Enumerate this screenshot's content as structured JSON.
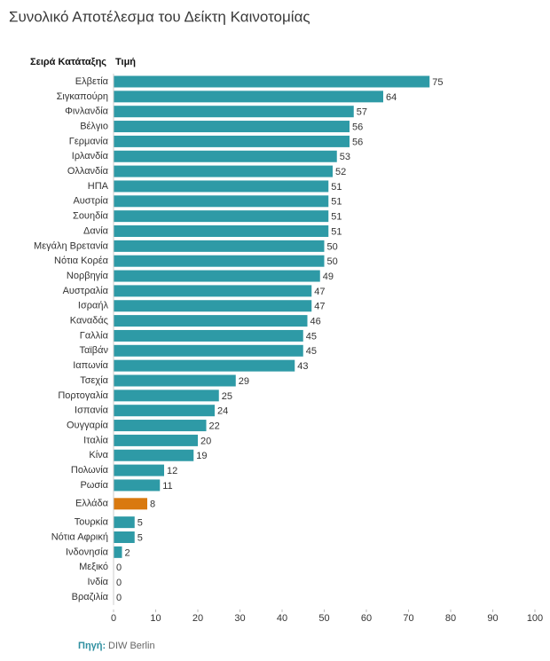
{
  "chart_data": {
    "type": "hbar",
    "title": "Συνολικό Αποτέλεσμα του Δείκτη Καινοτομίας",
    "category_header": "Σειρά Κατάταξης",
    "value_header": "Τιμή",
    "categories": [
      "Ελβετία",
      "Σιγκαπούρη",
      "Φινλανδία",
      "Βέλγιο",
      "Γερμανία",
      "Ιρλανδία",
      "Ολλανδία",
      "ΗΠΑ",
      "Αυστρία",
      "Σουηδία",
      "Δανία",
      "Μεγάλη Βρετανία",
      "Νότια Κορέα",
      "Νορβηγία",
      "Αυστραλία",
      "Ισραήλ",
      "Καναδάς",
      "Γαλλία",
      "Ταϊβάν",
      "Ιαπωνία",
      "Τσεχία",
      "Πορτογαλία",
      "Ισπανία",
      "Ουγγαρία",
      "Ιταλία",
      "Κίνα",
      "Πολωνία",
      "Ρωσία",
      "Ελλάδα",
      "Τουρκία",
      "Νότια Αφρική",
      "Ινδονησία",
      "Μεξικό",
      "Ινδία",
      "Βραζιλία"
    ],
    "values": [
      75,
      64,
      57,
      56,
      56,
      53,
      52,
      51,
      51,
      51,
      51,
      50,
      50,
      49,
      47,
      47,
      46,
      45,
      45,
      43,
      29,
      25,
      24,
      22,
      20,
      19,
      12,
      11,
      8,
      5,
      5,
      2,
      0,
      0,
      0
    ],
    "color": "#2e9aa6",
    "highlight": {
      "category": "Ελλάδα",
      "color": "#d9790f"
    },
    "xlim": [
      0,
      100
    ],
    "xticks": [
      0,
      10,
      20,
      30,
      40,
      50,
      60,
      70,
      80,
      90,
      100
    ],
    "source_label": "Πηγή:",
    "source": "DIW Berlin"
  }
}
